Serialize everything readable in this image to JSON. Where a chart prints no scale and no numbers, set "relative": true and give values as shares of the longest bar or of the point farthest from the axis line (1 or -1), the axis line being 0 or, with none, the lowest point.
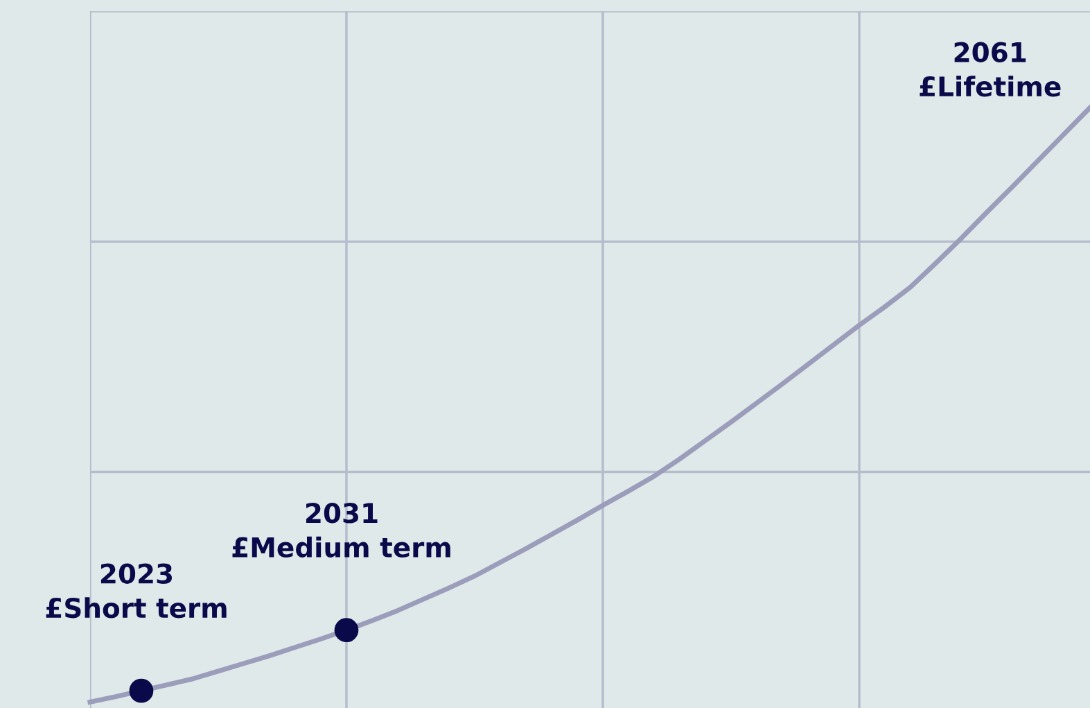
{
  "chart_data": {
    "type": "line",
    "relative": true,
    "categories": [
      null,
      null,
      null,
      null,
      null,
      null,
      null,
      null,
      null,
      null,
      null,
      null,
      null,
      null,
      null,
      null,
      null,
      null,
      null,
      null,
      null,
      null,
      null,
      null,
      null,
      null,
      null,
      null,
      null,
      null,
      null,
      null,
      null,
      null,
      null,
      null,
      null,
      null,
      null,
      null
    ],
    "grid": true,
    "series": [
      {
        "color": "#9c9cbb",
        "values": [
          0,
          0.009,
          0.019,
          0.029,
          0.039,
          0.052,
          0.065,
          0.078,
          0.092,
          0.106,
          0.121,
          0.137,
          0.154,
          0.173,
          0.192,
          0.212,
          0.235,
          0.258,
          0.282,
          0.306,
          0.331,
          0.355,
          0.38,
          0.409,
          0.44,
          0.471,
          0.503,
          0.535,
          0.568,
          0.601,
          0.634,
          0.665,
          0.698,
          0.739,
          0.781,
          0.825,
          0.868,
          0.912,
          0.956,
          1.0
        ]
      }
    ],
    "annotations": [
      {
        "text": "2023\n£Short term",
        "y": 0.019
      },
      {
        "text": "2031\n£Medium term",
        "y": 0.121
      },
      "2061\n£Lifetime"
    ]
  }
}
